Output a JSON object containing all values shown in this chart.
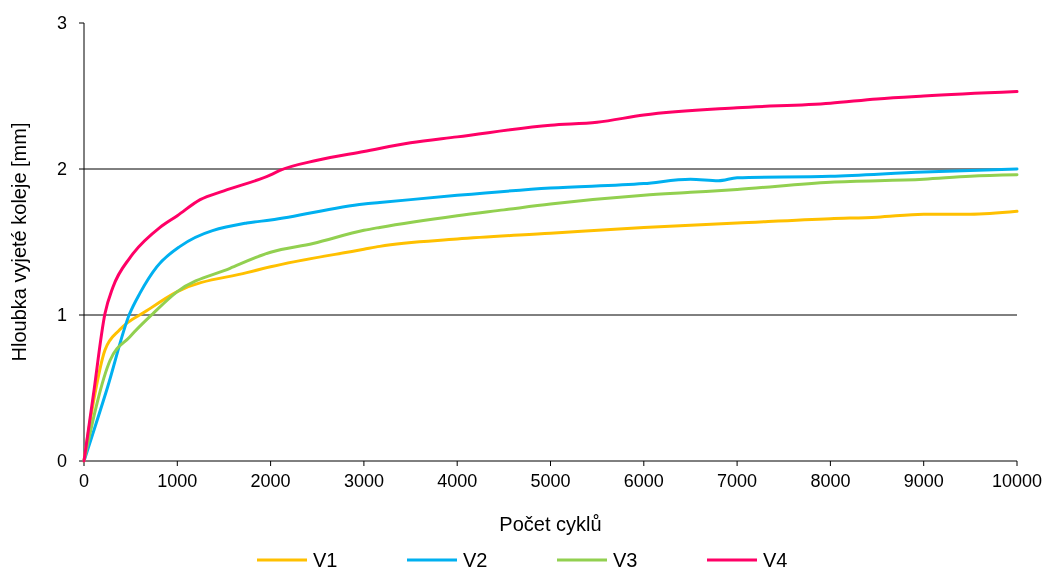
{
  "chart_data": {
    "type": "line",
    "xlabel": "Počet cyklů",
    "ylabel": "Hloubka vyjeté koleje [mm]",
    "xlim": [
      0,
      10000
    ],
    "xticks": [
      0,
      1000,
      2000,
      3000,
      4000,
      5000,
      6000,
      7000,
      8000,
      9000,
      10000
    ],
    "ylim": [
      0,
      3
    ],
    "yticks": [
      0,
      1,
      2,
      3
    ],
    "grid": "y",
    "legend": "bottom",
    "marker": "none",
    "line_style": "solid",
    "series": [
      {
        "name": "V1",
        "color": "#ffc000",
        "x": [
          0,
          100,
          225,
          385,
          675,
          1000,
          1745,
          2000,
          3000,
          3170,
          4000,
          5000,
          6000,
          7000,
          8000,
          8500,
          9000,
          9500,
          10000
        ],
        "values": [
          0,
          0.4,
          0.76,
          0.9,
          1.03,
          1.16,
          1.29,
          1.33,
          1.45,
          1.47,
          1.52,
          1.56,
          1.6,
          1.63,
          1.66,
          1.67,
          1.69,
          1.69,
          1.71
        ]
      },
      {
        "name": "V2",
        "color": "#00b0f0",
        "x": [
          0,
          250,
          490,
          600,
          780,
          1030,
          1745,
          2000,
          3000,
          3170,
          4000,
          5000,
          6000,
          6500,
          6800,
          7000,
          8000,
          9000,
          10000
        ],
        "values": [
          0,
          0.5,
          1.01,
          1.15,
          1.33,
          1.47,
          1.63,
          1.65,
          1.76,
          1.77,
          1.82,
          1.87,
          1.9,
          1.93,
          1.92,
          1.94,
          1.95,
          1.98,
          2.0
        ]
      },
      {
        "name": "V3",
        "color": "#92d050",
        "x": [
          0,
          280,
          490,
          740,
          1000,
          1565,
          2000,
          2455,
          3000,
          3170,
          4000,
          4500,
          5000,
          6000,
          6500,
          7000,
          8000,
          9000,
          9500,
          10000
        ],
        "values": [
          0,
          0.69,
          0.85,
          1.01,
          1.16,
          1.32,
          1.43,
          1.49,
          1.58,
          1.6,
          1.68,
          1.72,
          1.76,
          1.82,
          1.84,
          1.86,
          1.91,
          1.93,
          1.95,
          1.96
        ]
      },
      {
        "name": "V4",
        "color": "#ff0066",
        "x": [
          0,
          100,
          225,
          310,
          490,
          525,
          815,
          1000,
          1245,
          1500,
          2000,
          2100,
          2500,
          3000,
          3500,
          4000,
          5000,
          5500,
          6000,
          7000,
          8000,
          8500,
          9000,
          10000
        ],
        "values": [
          0,
          0.45,
          1.01,
          1.19,
          1.39,
          1.42,
          1.6,
          1.68,
          1.79,
          1.85,
          1.96,
          1.99,
          2.06,
          2.12,
          2.18,
          2.22,
          2.3,
          2.32,
          2.37,
          2.42,
          2.45,
          2.48,
          2.5,
          2.53
        ]
      }
    ]
  }
}
